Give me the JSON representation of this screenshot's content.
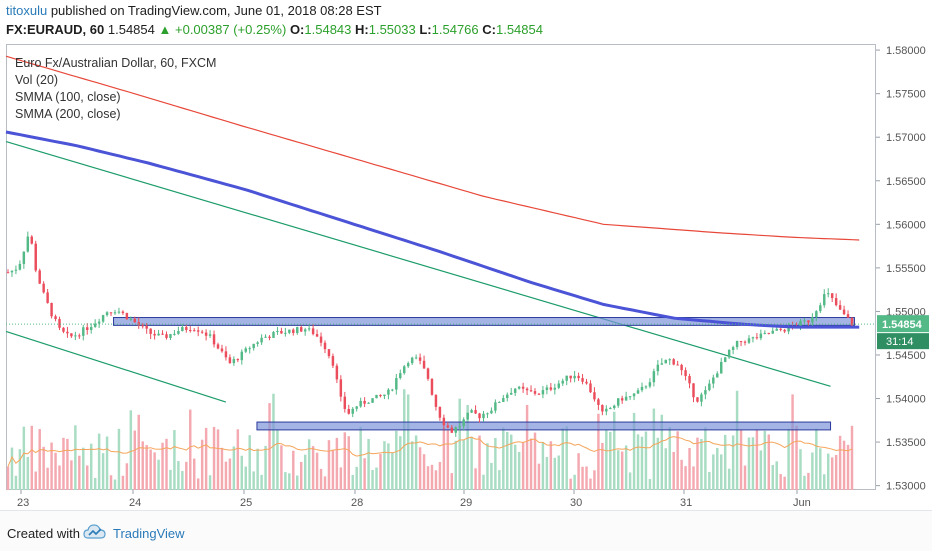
{
  "header": {
    "author": "titoxulu",
    "published_text": "published on TradingView.com, June 01, 2018 08:28 EST",
    "symbol": "FX:EURAUD, 60",
    "last": "1.54854",
    "up_arrow": "▲",
    "change": "+0.00387 (+0.25%)",
    "o_label": "O:",
    "o": "1.54843",
    "h_label": "H:",
    "h": "1.55033",
    "l_label": "L:",
    "l": "1.54766",
    "c_label": "C:",
    "c": "1.54854"
  },
  "legend": {
    "title": "Euro Fx/Australian Dollar, 60, FXCM",
    "vol": "Vol (20)",
    "smma100": "SMMA (100, close)",
    "smma200": "SMMA (200, close)"
  },
  "footer": {
    "created": "Created with",
    "brand": "TradingView"
  },
  "colors": {
    "up": "#53b987",
    "down": "#eb4d5c",
    "vol_up": "#a8dcc3",
    "vol_down": "#f4a9b1",
    "smma100": "#4b53d6",
    "smma200": "#e8483a",
    "trendline": "#1c9c6a",
    "zone_fill": "#7d94d8",
    "zone_stroke": "#2b3a9c",
    "vol_ma": "#f5a55a",
    "price_tag": "#53b987"
  },
  "chart_data": {
    "type": "candlestick",
    "title": "Euro Fx/Australian Dollar, 60, FXCM",
    "y_axis": {
      "ticks": [
        "1.58000",
        "1.57500",
        "1.57000",
        "1.56500",
        "1.56000",
        "1.55500",
        "1.55000",
        "1.54500",
        "1.54000",
        "1.53500",
        "1.53000"
      ],
      "ylim": [
        1.5295,
        1.5807
      ]
    },
    "x_axis": {
      "labels": [
        "23",
        "24",
        "25",
        "28",
        "29",
        "30",
        "31",
        "Jun"
      ]
    },
    "price_tag": {
      "value": "1.54854",
      "countdown": "31:14"
    },
    "price_path": [
      [
        0.0,
        1.5545
      ],
      [
        0.3,
        1.5548
      ],
      [
        0.5,
        1.5556
      ],
      [
        0.8,
        1.5582
      ],
      [
        0.95,
        1.5598
      ],
      [
        1.0,
        1.5578
      ],
      [
        1.2,
        1.5545
      ],
      [
        1.5,
        1.552
      ],
      [
        1.8,
        1.55
      ],
      [
        2.2,
        1.5478
      ],
      [
        2.6,
        1.547
      ],
      [
        3.0,
        1.5475
      ],
      [
        3.4,
        1.5482
      ],
      [
        3.8,
        1.549
      ],
      [
        4.2,
        1.55
      ],
      [
        4.6,
        1.5502
      ],
      [
        5.0,
        1.5495
      ],
      [
        5.5,
        1.5485
      ],
      [
        6.0,
        1.5475
      ],
      [
        6.6,
        1.547
      ],
      [
        7.2,
        1.5478
      ],
      [
        7.8,
        1.5482
      ],
      [
        8.2,
        1.5478
      ],
      [
        8.6,
        1.547
      ],
      [
        9.0,
        1.5455
      ],
      [
        9.4,
        1.544
      ],
      [
        9.8,
        1.5448
      ],
      [
        10.3,
        1.546
      ],
      [
        10.8,
        1.547
      ],
      [
        11.4,
        1.5475
      ],
      [
        12.0,
        1.5478
      ],
      [
        12.6,
        1.548
      ],
      [
        13.0,
        1.5475
      ],
      [
        13.4,
        1.5462
      ],
      [
        13.8,
        1.544
      ],
      [
        14.1,
        1.54
      ],
      [
        14.4,
        1.5382
      ],
      [
        14.8,
        1.5392
      ],
      [
        15.3,
        1.5398
      ],
      [
        15.8,
        1.5402
      ],
      [
        16.2,
        1.5408
      ],
      [
        16.6,
        1.543
      ],
      [
        17.0,
        1.5445
      ],
      [
        17.4,
        1.5445
      ],
      [
        17.8,
        1.5425
      ],
      [
        18.1,
        1.5395
      ],
      [
        18.4,
        1.5375
      ],
      [
        18.8,
        1.5362
      ],
      [
        19.2,
        1.537
      ],
      [
        19.6,
        1.5384
      ],
      [
        20.0,
        1.538
      ],
      [
        20.5,
        1.5388
      ],
      [
        21.0,
        1.5402
      ],
      [
        21.5,
        1.5412
      ],
      [
        22.0,
        1.5408
      ],
      [
        22.5,
        1.5406
      ],
      [
        23.0,
        1.5412
      ],
      [
        23.5,
        1.542
      ],
      [
        24.0,
        1.5428
      ],
      [
        24.4,
        1.5422
      ],
      [
        24.8,
        1.5405
      ],
      [
        25.2,
        1.5382
      ],
      [
        25.6,
        1.539
      ],
      [
        26.0,
        1.54
      ],
      [
        26.4,
        1.5402
      ],
      [
        26.8,
        1.5408
      ],
      [
        27.2,
        1.542
      ],
      [
        27.6,
        1.5438
      ],
      [
        28.0,
        1.5445
      ],
      [
        28.4,
        1.544
      ],
      [
        28.8,
        1.542
      ],
      [
        29.2,
        1.5398
      ],
      [
        29.6,
        1.5408
      ],
      [
        30.0,
        1.5428
      ],
      [
        30.5,
        1.545
      ],
      [
        31.0,
        1.5465
      ],
      [
        31.5,
        1.5468
      ],
      [
        32.0,
        1.5472
      ],
      [
        32.5,
        1.5477
      ],
      [
        33.0,
        1.548
      ],
      [
        33.5,
        1.5485
      ],
      [
        34.0,
        1.549
      ],
      [
        34.4,
        1.5508
      ],
      [
        34.7,
        1.5522
      ],
      [
        35.0,
        1.5512
      ],
      [
        35.3,
        1.55
      ],
      [
        35.5,
        1.5495
      ],
      [
        35.8,
        1.5485
      ]
    ],
    "series": [
      {
        "name": "SMMA (200, close)",
        "points": [
          [
            0,
            1.5793
          ],
          [
            5,
            1.5753
          ],
          [
            10,
            1.5712
          ],
          [
            15,
            1.5672
          ],
          [
            20,
            1.5632
          ],
          [
            25,
            1.56
          ],
          [
            30,
            1.559
          ],
          [
            33,
            1.5585
          ],
          [
            35.7,
            1.5582
          ]
        ]
      },
      {
        "name": "SMMA (100, close)",
        "points": [
          [
            0,
            1.5706
          ],
          [
            3,
            1.569
          ],
          [
            6,
            1.567
          ],
          [
            10,
            1.564
          ],
          [
            14,
            1.5605
          ],
          [
            18,
            1.557
          ],
          [
            22,
            1.5533
          ],
          [
            25,
            1.5508
          ],
          [
            28,
            1.5492
          ],
          [
            31,
            1.5485
          ],
          [
            33,
            1.5482
          ],
          [
            35.7,
            1.5482
          ]
        ]
      }
    ],
    "trend_lines": [
      {
        "from": [
          0,
          1.5695
        ],
        "to": [
          34.5,
          1.5414
        ]
      },
      {
        "from": [
          0,
          1.5477
        ],
        "to": [
          9.2,
          1.5396
        ]
      }
    ],
    "zones": [
      {
        "x0": 4.5,
        "x1": 35.5,
        "y0": 1.5484,
        "y1": 1.5493
      },
      {
        "x0": 10.5,
        "x1": 34.5,
        "y0": 1.5364,
        "y1": 1.5373
      }
    ]
  }
}
